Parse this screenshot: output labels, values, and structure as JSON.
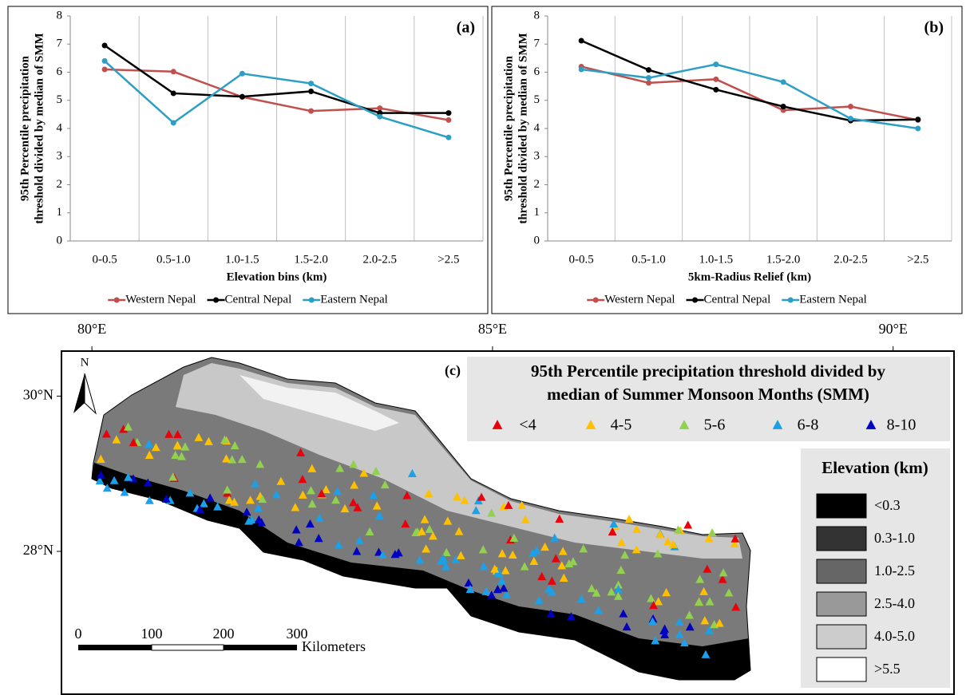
{
  "chart_data": [
    {
      "type": "line",
      "title": "(a)",
      "ylabel": [
        "95th Percentile precipitation",
        "threshold divided by median of SMM"
      ],
      "xlabel": "Elevation bins (km)",
      "categories": [
        "0-0.5",
        "0.5-1.0",
        "1.0-1.5",
        "1.5-2.0",
        "2.0-2.5",
        ">2.5"
      ],
      "series": [
        {
          "name": "Western Nepal",
          "color": "#c0504d",
          "values": [
            6.1,
            6.02,
            5.12,
            4.62,
            4.72,
            4.3
          ]
        },
        {
          "name": "Central Nepal",
          "color": "#000000",
          "values": [
            6.95,
            5.25,
            5.13,
            5.32,
            4.55,
            4.55
          ]
        },
        {
          "name": "Eastern Nepal",
          "color": "#2e9fc4",
          "values": [
            6.4,
            4.2,
            5.95,
            5.6,
            4.42,
            3.68
          ]
        }
      ],
      "ylim": [
        0,
        8
      ],
      "yticks": [
        0,
        1,
        2,
        3,
        4,
        5,
        6,
        7,
        8
      ],
      "grid": true,
      "legend": "bottom"
    },
    {
      "type": "line",
      "title": "(b)",
      "ylabel": [
        "95th Percentile precipitation",
        "threshold divided by median of SMM"
      ],
      "xlabel": "5km-Radius Relief (km)",
      "categories": [
        "0-0.5",
        "0.5-1.0",
        "1.0-1.5",
        "1.5-2.0",
        "2.0-2.5",
        ">2.5"
      ],
      "series": [
        {
          "name": "Western Nepal",
          "color": "#c0504d",
          "values": [
            6.2,
            5.62,
            5.75,
            4.65,
            4.78,
            4.3
          ]
        },
        {
          "name": "Central Nepal",
          "color": "#000000",
          "values": [
            7.12,
            6.08,
            5.38,
            4.78,
            4.28,
            4.32
          ]
        },
        {
          "name": "Eastern Nepal",
          "color": "#2e9fc4",
          "values": [
            6.1,
            5.8,
            6.28,
            5.65,
            4.35,
            4.0
          ]
        }
      ],
      "ylim": [
        0,
        8
      ],
      "yticks": [
        0,
        1,
        2,
        3,
        4,
        5,
        6,
        7,
        8
      ],
      "grid": true,
      "legend": "bottom"
    }
  ],
  "map": {
    "title": "(c)",
    "north": "N",
    "xlim": [
      79.62,
      90.76
    ],
    "ylim": [
      26.16,
      30.58
    ],
    "xticks": [
      {
        "value": 80,
        "label": "80°E"
      },
      {
        "value": 85,
        "label": "85°E"
      },
      {
        "value": 90,
        "label": "90°E"
      }
    ],
    "yticks": [
      {
        "value": 30,
        "label": "30°N"
      },
      {
        "value": 28,
        "label": "28°N"
      }
    ],
    "symbol_legend": {
      "title": [
        "95th Percentile precipitation threshold divided by",
        "median of Summer Monsoon Months (SMM)"
      ],
      "items": [
        {
          "label": "<4",
          "color": "#e8000b"
        },
        {
          "label": "4-5",
          "color": "#ffc000"
        },
        {
          "label": "5-6",
          "color": "#92d050"
        },
        {
          "label": "6-8",
          "color": "#1ca0e8"
        },
        {
          "label": "8-10",
          "color": "#0000c0"
        }
      ]
    },
    "elevation_legend": {
      "title": "Elevation (km)",
      "items": [
        {
          "label": "<0.3",
          "color": "#000000"
        },
        {
          "label": "0.3-1.0",
          "color": "#333333"
        },
        {
          "label": "1.0-2.5",
          "color": "#666666"
        },
        {
          "label": "2.5-4.0",
          "color": "#999999"
        },
        {
          "label": "4.0-5.0",
          "color": "#cccccc"
        },
        {
          "label": ">5.5",
          "color": "#ffffff"
        }
      ]
    },
    "scale_bar": {
      "labels": [
        "0",
        "100",
        "200",
        "300"
      ],
      "unit": "Kilometers"
    }
  }
}
